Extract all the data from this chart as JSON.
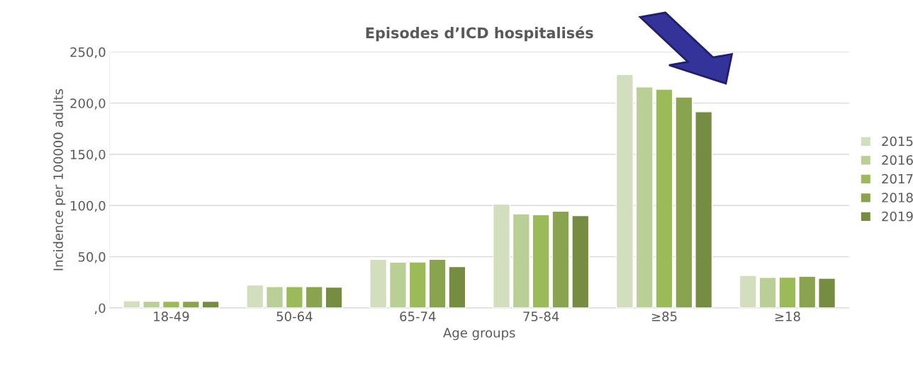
{
  "chart_data": {
    "type": "bar",
    "title": "Episodes d’ICD hospitalisés",
    "xlabel": "Age groups",
    "ylabel": "Incidence per 100000 adults",
    "categories": [
      "18-49",
      "50-64",
      "65-74",
      "75-84",
      "≥85",
      "≥18"
    ],
    "series": [
      {
        "name": "2015",
        "color": "#d2debd",
        "values": [
          7.0,
          22.3,
          47.5,
          101.4,
          228.0,
          31.7
        ]
      },
      {
        "name": "2016",
        "color": "#b9cf95",
        "values": [
          6.4,
          20.9,
          44.6,
          91.8,
          215.8,
          29.8
        ]
      },
      {
        "name": "2017",
        "color": "#9bbb59",
        "values": [
          6.4,
          20.9,
          44.9,
          91.0,
          213.6,
          30.0
        ]
      },
      {
        "name": "2018",
        "color": "#89a34e",
        "values": [
          6.4,
          20.9,
          47.5,
          94.5,
          205.9,
          30.9
        ]
      },
      {
        "name": "2019",
        "color": "#768c40",
        "values": [
          6.4,
          20.3,
          40.3,
          90.1,
          191.6,
          28.9
        ]
      }
    ],
    "ylim": [
      0,
      250
    ],
    "yticks": [
      {
        "value": 0,
        "label": ",0"
      },
      {
        "value": 50,
        "label": "50,0"
      },
      {
        "value": 100,
        "label": "100,0"
      },
      {
        "value": 150,
        "label": "150,0"
      },
      {
        "value": 200,
        "label": "200,0"
      },
      {
        "value": 250,
        "label": "250,0"
      }
    ],
    "grid": "y",
    "legend": "right"
  }
}
